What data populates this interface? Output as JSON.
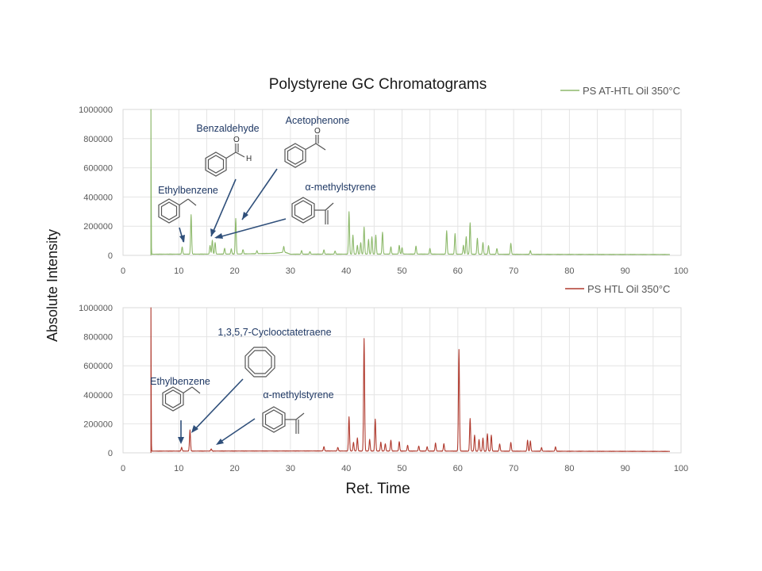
{
  "title": "Polystyrene GC Chromatograms",
  "ylabel": "Absolute Intensity",
  "xlabel": "Ret. Time",
  "colors": {
    "top": "#8db96b",
    "bottom": "#b03a2e",
    "annotation": "#1f3864",
    "arrow": "#2f4f7a"
  },
  "chart_data": [
    {
      "type": "line",
      "panel": "top",
      "legend": "PS AT-HTL Oil 350°C",
      "xlim": [
        0,
        100
      ],
      "ylim": [
        0,
        1000000
      ],
      "x_ticks": [
        "0",
        "10",
        "20",
        "30",
        "40",
        "50",
        "60",
        "70",
        "80",
        "90",
        "100"
      ],
      "y_ticks": [
        "0",
        "200000",
        "400000",
        "600000",
        "800000",
        "1000000"
      ],
      "baseline": [
        [
          5,
          8000
        ],
        [
          20,
          9000
        ],
        [
          27,
          14000
        ],
        [
          29,
          22000
        ],
        [
          30,
          8000
        ],
        [
          50,
          9000
        ],
        [
          75,
          7000
        ],
        [
          98,
          6000
        ]
      ],
      "peaks": [
        [
          5.0,
          1000000
        ],
        [
          10.6,
          50000
        ],
        [
          12.2,
          270000
        ],
        [
          15.6,
          60000
        ],
        [
          16.0,
          95000
        ],
        [
          16.5,
          80000
        ],
        [
          18.2,
          40000
        ],
        [
          19.4,
          35000
        ],
        [
          20.2,
          245000
        ],
        [
          21.5,
          30000
        ],
        [
          24.0,
          20000
        ],
        [
          28.8,
          40000
        ],
        [
          32.0,
          25000
        ],
        [
          33.5,
          18000
        ],
        [
          36.0,
          30000
        ],
        [
          38.0,
          22000
        ],
        [
          40.5,
          290000
        ],
        [
          41.2,
          130000
        ],
        [
          42.0,
          60000
        ],
        [
          42.6,
          80000
        ],
        [
          43.2,
          185000
        ],
        [
          44.0,
          100000
        ],
        [
          44.6,
          120000
        ],
        [
          45.3,
          130000
        ],
        [
          46.5,
          150000
        ],
        [
          48.0,
          50000
        ],
        [
          49.5,
          60000
        ],
        [
          50.0,
          45000
        ],
        [
          52.5,
          55000
        ],
        [
          55.0,
          40000
        ],
        [
          58.0,
          160000
        ],
        [
          59.5,
          140000
        ],
        [
          61.0,
          60000
        ],
        [
          61.5,
          120000
        ],
        [
          62.2,
          215000
        ],
        [
          63.5,
          110000
        ],
        [
          64.5,
          80000
        ],
        [
          65.5,
          60000
        ],
        [
          67.0,
          40000
        ],
        [
          69.5,
          75000
        ],
        [
          73.0,
          25000
        ]
      ],
      "annotations": [
        "Benzaldehyde",
        "Acetophenone",
        "Ethylbenzene",
        "α-methylstyrene"
      ]
    },
    {
      "type": "line",
      "panel": "bottom",
      "legend": "PS HTL Oil 350°C",
      "xlim": [
        0,
        100
      ],
      "ylim": [
        0,
        1000000
      ],
      "x_ticks": [
        "0",
        "10",
        "20",
        "30",
        "40",
        "50",
        "60",
        "70",
        "80",
        "90",
        "100"
      ],
      "y_ticks": [
        "0",
        "200000",
        "400000",
        "600000",
        "800000",
        "1000000"
      ],
      "baseline": [
        [
          5,
          12000
        ],
        [
          35,
          13000
        ],
        [
          60,
          12000
        ],
        [
          98,
          10000
        ]
      ],
      "peaks": [
        [
          5.0,
          1000000
        ],
        [
          10.5,
          25000
        ],
        [
          12.0,
          145000
        ],
        [
          15.8,
          15000
        ],
        [
          36.0,
          30000
        ],
        [
          38.5,
          25000
        ],
        [
          40.5,
          235000
        ],
        [
          41.3,
          60000
        ],
        [
          42.0,
          90000
        ],
        [
          43.2,
          775000
        ],
        [
          44.2,
          80000
        ],
        [
          45.2,
          220000
        ],
        [
          46.2,
          60000
        ],
        [
          47.0,
          50000
        ],
        [
          48.0,
          75000
        ],
        [
          49.5,
          65000
        ],
        [
          51.0,
          40000
        ],
        [
          53.0,
          35000
        ],
        [
          54.5,
          30000
        ],
        [
          56.0,
          55000
        ],
        [
          57.5,
          50000
        ],
        [
          60.2,
          700000
        ],
        [
          62.2,
          225000
        ],
        [
          63.0,
          110000
        ],
        [
          63.8,
          80000
        ],
        [
          64.5,
          90000
        ],
        [
          65.3,
          120000
        ],
        [
          66.0,
          110000
        ],
        [
          67.5,
          50000
        ],
        [
          69.5,
          60000
        ],
        [
          72.5,
          75000
        ],
        [
          73.0,
          70000
        ],
        [
          75.0,
          25000
        ],
        [
          77.5,
          30000
        ]
      ],
      "annotations": [
        "1,3,5,7-Cyclooctatetraene",
        "Ethylbenzene",
        "α-methylstyrene"
      ]
    }
  ],
  "annotations": {
    "top": {
      "benzaldehyde": "Benzaldehyde",
      "benzaldehyde_o": "O",
      "benzaldehyde_h": "H",
      "acetophenone": "Acetophenone",
      "acetophenone_o": "O",
      "ethylbenzene": "Ethylbenzene",
      "methylstyrene": "α-methylstyrene"
    },
    "bottom": {
      "cot": "1,3,5,7-Cyclooctatetraene",
      "ethylbenzene": "Ethylbenzene",
      "methylstyrene": "α-methylstyrene"
    }
  }
}
